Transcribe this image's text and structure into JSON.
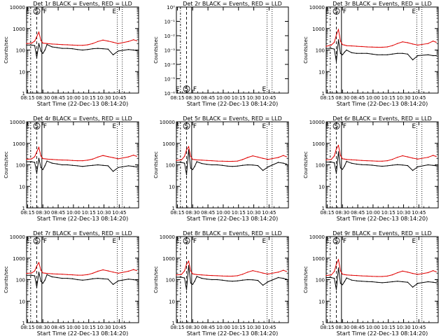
{
  "page": {
    "x_tick_labels": [
      "08:15",
      "08:30",
      "08:45",
      "10:00",
      "10:15",
      "10:30",
      "10:45"
    ],
    "x_label": "Start Time (22-Dec-13 08:14:20)",
    "y_label": "Counts/sec",
    "marker_labels": {
      "E": "E",
      "S": "S",
      "F": "F"
    },
    "colors": {
      "events": "#000000",
      "lld": "#e00000",
      "axes": "#000000",
      "background": "#ffffff"
    }
  },
  "chart_data": [
    {
      "type": "line",
      "title": "Det 1r BLACK = Events, RED = LLD",
      "xlabel": "Start Time (22-Dec-13 08:14:20)",
      "ylabel": "Counts/sec",
      "yscale": "log",
      "ylim": [
        1,
        10000
      ],
      "y_tick_labels": [
        "1",
        "10",
        "100",
        "1000",
        "10000"
      ],
      "empty": false,
      "series": [
        {
          "name": "Events",
          "color": "#000000",
          "times": [
            0,
            5,
            8,
            10,
            12,
            14,
            16,
            18,
            20,
            25,
            30,
            35,
            40,
            45,
            50,
            55,
            60,
            65,
            70,
            75,
            80,
            85,
            90,
            100,
            105,
            108
          ],
          "values": [
            170,
            170,
            160,
            45,
            200,
            90,
            70,
            100,
            180,
            140,
            130,
            120,
            120,
            115,
            105,
            100,
            105,
            115,
            120,
            115,
            110,
            60,
            90,
            105,
            100,
            95
          ]
        },
        {
          "name": "LLD",
          "color": "#e00000",
          "times": [
            0,
            5,
            8,
            10,
            12,
            14,
            16,
            18,
            20,
            25,
            30,
            35,
            40,
            45,
            50,
            55,
            60,
            65,
            70,
            75,
            80,
            85,
            90,
            100,
            105,
            108
          ],
          "values": [
            200,
            210,
            260,
            420,
            680,
            280,
            210,
            205,
            200,
            190,
            185,
            180,
            175,
            170,
            165,
            165,
            175,
            200,
            250,
            290,
            260,
            230,
            200,
            250,
            300,
            270
          ]
        }
      ]
    },
    {
      "type": "line",
      "title": "Det 2r BLACK = Events, RED = LLD",
      "xlabel": "Start Time (22-Dec-13 08:14:20)",
      "ylabel": "Counts/sec",
      "yscale": "log",
      "ylim": [
        1e-06,
        1
      ],
      "y_tick_labels": [
        "10⁰",
        "10⁻¹",
        "10⁻²",
        "10⁻³",
        "10⁻⁴",
        "10⁻⁵",
        "10⁻⁶"
      ],
      "empty": true,
      "series": []
    },
    {
      "type": "line",
      "title": "Det 3r BLACK = Events, RED = LLD",
      "xlabel": "Start Time (22-Dec-13 08:14:20)",
      "ylabel": "Counts/sec",
      "yscale": "log",
      "ylim": [
        1,
        10000
      ],
      "y_tick_labels": [
        "1",
        "10",
        "100",
        "1000",
        "10000"
      ],
      "empty": false,
      "series": [
        {
          "name": "Events",
          "color": "#000000",
          "times": [
            0,
            5,
            8,
            10,
            12,
            14,
            16,
            18,
            20,
            25,
            30,
            35,
            40,
            45,
            50,
            55,
            60,
            65,
            70,
            75,
            80,
            85,
            90,
            100,
            105,
            108
          ],
          "values": [
            120,
            120,
            110,
            30,
            300,
            70,
            60,
            80,
            100,
            75,
            70,
            70,
            70,
            65,
            60,
            60,
            60,
            65,
            70,
            70,
            65,
            35,
            55,
            60,
            55,
            55
          ]
        },
        {
          "name": "LLD",
          "color": "#e00000",
          "times": [
            0,
            5,
            8,
            10,
            12,
            14,
            16,
            18,
            20,
            25,
            30,
            35,
            40,
            45,
            50,
            55,
            60,
            65,
            70,
            75,
            80,
            85,
            90,
            100,
            105,
            108
          ],
          "values": [
            150,
            170,
            230,
            500,
            900,
            260,
            180,
            170,
            160,
            155,
            150,
            145,
            140,
            138,
            135,
            135,
            140,
            160,
            200,
            240,
            220,
            190,
            170,
            200,
            260,
            230
          ]
        }
      ]
    },
    {
      "type": "line",
      "title": "Det 4r BLACK = Events, RED = LLD",
      "xlabel": "Start Time (22-Dec-13 08:14:20)",
      "ylabel": "Counts/sec",
      "yscale": "log",
      "ylim": [
        1,
        10000
      ],
      "y_tick_labels": [
        "1",
        "10",
        "100",
        "1000",
        "10000"
      ],
      "empty": false,
      "series": [
        {
          "name": "Events",
          "color": "#000000",
          "times": [
            0,
            5,
            8,
            10,
            12,
            14,
            16,
            18,
            20,
            25,
            30,
            35,
            40,
            45,
            50,
            55,
            60,
            65,
            70,
            75,
            80,
            85,
            90,
            100,
            105,
            108
          ],
          "values": [
            140,
            140,
            130,
            40,
            200,
            75,
            60,
            90,
            150,
            120,
            110,
            100,
            100,
            95,
            90,
            85,
            90,
            95,
            100,
            95,
            90,
            50,
            75,
            90,
            85,
            80
          ]
        },
        {
          "name": "LLD",
          "color": "#e00000",
          "times": [
            0,
            5,
            8,
            10,
            12,
            14,
            16,
            18,
            20,
            25,
            30,
            35,
            40,
            45,
            50,
            55,
            60,
            65,
            70,
            75,
            80,
            85,
            90,
            100,
            105,
            108
          ],
          "values": [
            180,
            190,
            240,
            400,
            650,
            260,
            195,
            190,
            185,
            178,
            172,
            168,
            165,
            160,
            155,
            155,
            165,
            185,
            230,
            270,
            240,
            215,
            190,
            235,
            280,
            250
          ]
        }
      ]
    },
    {
      "type": "line",
      "title": "Det 5r BLACK = Events, RED = LLD",
      "xlabel": "Start Time (22-Dec-13 08:14:20)",
      "ylabel": "Counts/sec",
      "yscale": "log",
      "ylim": [
        1,
        10000
      ],
      "y_tick_labels": [
        "1",
        "10",
        "100",
        "1000",
        "10000"
      ],
      "empty": false,
      "series": [
        {
          "name": "Events",
          "color": "#000000",
          "times": [
            0,
            5,
            8,
            10,
            12,
            14,
            16,
            18,
            20,
            25,
            30,
            35,
            40,
            45,
            50,
            55,
            60,
            65,
            70,
            75,
            80,
            85,
            90,
            100,
            105,
            108
          ],
          "values": [
            130,
            130,
            120,
            35,
            500,
            70,
            60,
            85,
            140,
            115,
            105,
            100,
            100,
            95,
            88,
            85,
            88,
            95,
            100,
            98,
            92,
            55,
            80,
            130,
            120,
            110
          ]
        },
        {
          "name": "LLD",
          "color": "#e00000",
          "times": [
            0,
            5,
            8,
            10,
            12,
            14,
            16,
            18,
            20,
            25,
            30,
            35,
            40,
            45,
            50,
            55,
            60,
            65,
            70,
            75,
            80,
            85,
            90,
            100,
            105,
            108
          ],
          "values": [
            160,
            170,
            250,
            500,
            700,
            250,
            180,
            175,
            170,
            165,
            160,
            155,
            150,
            148,
            145,
            145,
            150,
            175,
            220,
            260,
            230,
            200,
            180,
            220,
            270,
            240
          ]
        }
      ]
    },
    {
      "type": "line",
      "title": "Det 6r BLACK = Events, RED = LLD",
      "xlabel": "Start Time (22-Dec-13 08:14:20)",
      "ylabel": "Counts/sec",
      "yscale": "log",
      "ylim": [
        1,
        10000
      ],
      "y_tick_labels": [
        "1",
        "10",
        "100",
        "1000",
        "10000"
      ],
      "empty": false,
      "series": [
        {
          "name": "Events",
          "color": "#000000",
          "times": [
            0,
            5,
            8,
            10,
            12,
            14,
            16,
            18,
            20,
            25,
            30,
            35,
            40,
            45,
            50,
            55,
            60,
            65,
            70,
            75,
            80,
            85,
            90,
            100,
            105,
            108
          ],
          "values": [
            135,
            135,
            125,
            40,
            400,
            72,
            62,
            88,
            145,
            118,
            108,
            102,
            100,
            96,
            90,
            86,
            90,
            96,
            102,
            98,
            92,
            55,
            82,
            100,
            95,
            90
          ]
        },
        {
          "name": "LLD",
          "color": "#e00000",
          "times": [
            0,
            5,
            8,
            10,
            12,
            14,
            16,
            18,
            20,
            25,
            30,
            35,
            40,
            45,
            50,
            55,
            60,
            65,
            70,
            75,
            80,
            85,
            90,
            100,
            105,
            108
          ],
          "values": [
            170,
            180,
            260,
            550,
            800,
            270,
            190,
            185,
            180,
            172,
            166,
            160,
            156,
            152,
            148,
            148,
            155,
            180,
            225,
            265,
            235,
            205,
            185,
            225,
            275,
            245
          ]
        }
      ]
    },
    {
      "type": "line",
      "title": "Det 7r BLACK = Events, RED = LLD",
      "xlabel": "Start Time (22-Dec-13 08:14:20)",
      "ylabel": "Counts/sec",
      "yscale": "log",
      "ylim": [
        1,
        10000
      ],
      "y_tick_labels": [
        "1",
        "10",
        "100",
        "1000",
        "10000"
      ],
      "empty": false,
      "series": [
        {
          "name": "Events",
          "color": "#000000",
          "times": [
            0,
            5,
            8,
            10,
            12,
            14,
            16,
            18,
            20,
            25,
            30,
            35,
            40,
            45,
            50,
            55,
            60,
            65,
            70,
            75,
            80,
            85,
            90,
            100,
            105,
            108
          ],
          "values": [
            160,
            160,
            150,
            45,
            220,
            85,
            68,
            95,
            170,
            135,
            125,
            115,
            115,
            110,
            100,
            95,
            100,
            110,
            115,
            110,
            105,
            60,
            88,
            105,
            100,
            95
          ]
        },
        {
          "name": "LLD",
          "color": "#e00000",
          "times": [
            0,
            5,
            8,
            10,
            12,
            14,
            16,
            18,
            20,
            25,
            30,
            35,
            40,
            45,
            50,
            55,
            60,
            65,
            70,
            75,
            80,
            85,
            90,
            100,
            105,
            108
          ],
          "values": [
            195,
            205,
            255,
            430,
            620,
            275,
            205,
            200,
            195,
            188,
            182,
            178,
            172,
            168,
            162,
            162,
            172,
            198,
            245,
            285,
            255,
            225,
            198,
            245,
            295,
            265
          ]
        }
      ]
    },
    {
      "type": "line",
      "title": "Det 8r BLACK = Events, RED = LLD",
      "xlabel": "Start Time (22-Dec-13 08:14:20)",
      "ylabel": "Counts/sec",
      "yscale": "log",
      "ylim": [
        1,
        10000
      ],
      "y_tick_labels": [
        "1",
        "10",
        "100",
        "1000",
        "10000"
      ],
      "empty": false,
      "series": [
        {
          "name": "Events",
          "color": "#000000",
          "times": [
            0,
            5,
            8,
            10,
            12,
            14,
            16,
            18,
            20,
            25,
            30,
            35,
            40,
            45,
            50,
            55,
            60,
            65,
            70,
            75,
            80,
            85,
            90,
            100,
            105,
            108
          ],
          "values": [
            130,
            130,
            120,
            35,
            450,
            70,
            60,
            85,
            140,
            115,
            105,
            100,
            100,
            95,
            88,
            85,
            88,
            95,
            100,
            98,
            92,
            55,
            80,
            125,
            115,
            105
          ]
        },
        {
          "name": "LLD",
          "color": "#e00000",
          "times": [
            0,
            5,
            8,
            10,
            12,
            14,
            16,
            18,
            20,
            25,
            30,
            35,
            40,
            45,
            50,
            55,
            60,
            65,
            70,
            75,
            80,
            85,
            90,
            100,
            105,
            108
          ],
          "values": [
            165,
            175,
            255,
            520,
            720,
            255,
            185,
            178,
            172,
            166,
            160,
            156,
            152,
            148,
            145,
            145,
            152,
            178,
            222,
            262,
            232,
            202,
            182,
            222,
            272,
            242
          ]
        }
      ]
    },
    {
      "type": "line",
      "title": "Det 9r BLACK = Events, RED = LLD",
      "xlabel": "Start Time (22-Dec-13 08:14:20)",
      "ylabel": "Counts/sec",
      "yscale": "log",
      "ylim": [
        1,
        10000
      ],
      "y_tick_labels": [
        "1",
        "10",
        "100",
        "1000",
        "10000"
      ],
      "empty": false,
      "series": [
        {
          "name": "Events",
          "color": "#000000",
          "times": [
            0,
            5,
            8,
            10,
            12,
            14,
            16,
            18,
            20,
            25,
            30,
            35,
            40,
            45,
            50,
            55,
            60,
            65,
            70,
            75,
            80,
            85,
            90,
            100,
            105,
            108
          ],
          "values": [
            125,
            125,
            115,
            35,
            350,
            68,
            58,
            82,
            120,
            95,
            88,
            84,
            82,
            80,
            75,
            72,
            75,
            80,
            84,
            80,
            76,
            45,
            68,
            80,
            76,
            72
          ]
        },
        {
          "name": "LLD",
          "color": "#e00000",
          "times": [
            0,
            5,
            8,
            10,
            12,
            14,
            16,
            18,
            20,
            25,
            30,
            35,
            40,
            45,
            50,
            55,
            60,
            65,
            70,
            75,
            80,
            85,
            90,
            100,
            105,
            108
          ],
          "values": [
            155,
            165,
            240,
            520,
            850,
            255,
            180,
            172,
            165,
            160,
            155,
            150,
            146,
            142,
            140,
            140,
            146,
            168,
            210,
            250,
            222,
            195,
            175,
            212,
            262,
            232
          ]
        }
      ]
    }
  ]
}
